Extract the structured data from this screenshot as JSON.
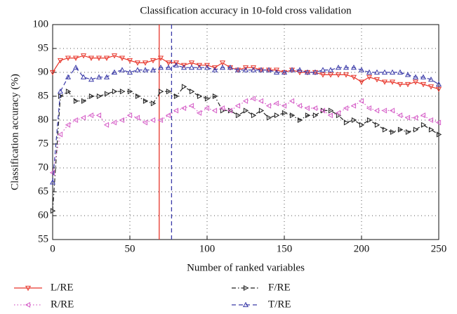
{
  "chart_data": {
    "type": "line",
    "title": "Classification accuracy in 10-fold cross validation",
    "x_label": "Number of ranked variables",
    "y_label": "Classification accuracy (%)",
    "x": [
      0,
      5,
      10,
      15,
      20,
      25,
      30,
      35,
      40,
      45,
      50,
      55,
      60,
      65,
      70,
      75,
      80,
      85,
      90,
      95,
      100,
      105,
      110,
      115,
      120,
      125,
      130,
      135,
      140,
      145,
      150,
      155,
      160,
      165,
      170,
      175,
      180,
      185,
      190,
      195,
      200,
      205,
      210,
      215,
      220,
      225,
      230,
      235,
      240,
      245,
      250
    ],
    "series": [
      {
        "name": "L/RE",
        "color": "#e8352a",
        "dash": "solid",
        "marker": "triangle-down",
        "values": [
          90,
          92.5,
          93,
          93,
          93.5,
          93,
          93,
          93,
          93.5,
          93,
          92.5,
          92,
          92,
          92.5,
          93,
          92,
          92,
          91.5,
          92,
          91.5,
          91.5,
          91,
          92,
          91,
          90.5,
          91,
          91,
          90.5,
          90.5,
          90.5,
          90,
          90.5,
          90,
          90,
          90,
          89.5,
          89.5,
          89.5,
          89.5,
          89,
          88,
          89,
          88.5,
          88,
          88,
          87.5,
          87.5,
          88,
          87.5,
          87,
          86.5
        ]
      },
      {
        "name": "F/RE",
        "color": "#222222",
        "dash": "dashdot",
        "marker": "triangle-right",
        "values": [
          61,
          85,
          86,
          84,
          84,
          85,
          85,
          85.5,
          86,
          86,
          86,
          85,
          84,
          83.5,
          86,
          86,
          85,
          87,
          86,
          85,
          84.5,
          85,
          82,
          82,
          81,
          82,
          81,
          82,
          80.5,
          81,
          81.5,
          81,
          80,
          81,
          81,
          82,
          82,
          81,
          79.5,
          80,
          79,
          80,
          79,
          78,
          77.5,
          78,
          77.5,
          78,
          79,
          78,
          77
        ]
      },
      {
        "name": "R/RE",
        "color": "#d660c8",
        "dash": "dotted",
        "marker": "triangle-left",
        "values": [
          69,
          77,
          79,
          80,
          80.5,
          81,
          81,
          79,
          79.5,
          80,
          81,
          80.5,
          79.5,
          80,
          80,
          81,
          82,
          82.5,
          83,
          81.5,
          82.5,
          82,
          82.5,
          82,
          83,
          84,
          84.5,
          84,
          83,
          83.5,
          83,
          84,
          83,
          82.5,
          82.5,
          82,
          81,
          81.5,
          82.5,
          83,
          84,
          82.5,
          82,
          82,
          82,
          81,
          80.5,
          80.5,
          81,
          80,
          79.5
        ]
      },
      {
        "name": "T/RE",
        "color": "#3a3aa8",
        "dash": "dashed",
        "marker": "triangle-up",
        "values": [
          67,
          86,
          89,
          91,
          89,
          88.5,
          89,
          89,
          90,
          90.5,
          90,
          90.5,
          90.5,
          90.5,
          91,
          91,
          91.5,
          91,
          91,
          91,
          91,
          90.5,
          91,
          91,
          90.5,
          90.5,
          90.5,
          90.5,
          90.5,
          90,
          90,
          90.5,
          90.5,
          90,
          90,
          90.5,
          90.5,
          91,
          91,
          91,
          90.5,
          90,
          90,
          90,
          90,
          90,
          89.5,
          89,
          89,
          88.5,
          87.5
        ]
      }
    ],
    "vlines": [
      {
        "x": 69,
        "color": "#e8352a",
        "dash": "solid"
      },
      {
        "x": 77,
        "color": "#3a3aa8",
        "dash": "dashed"
      }
    ],
    "xlim": [
      0,
      250
    ],
    "xticks": [
      0,
      50,
      100,
      150,
      200,
      250
    ],
    "ylim": [
      55,
      100
    ],
    "yticks": [
      55,
      60,
      65,
      70,
      75,
      80,
      85,
      90,
      95,
      100
    ],
    "grid": true,
    "legend": "bottom"
  }
}
